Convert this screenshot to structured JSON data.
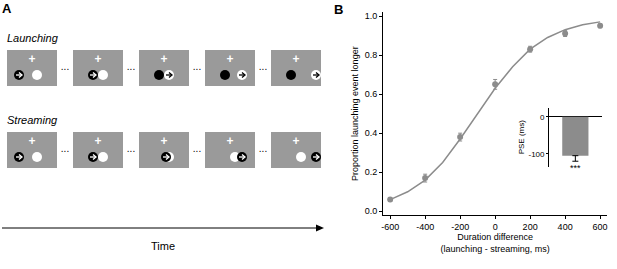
{
  "figure": {
    "panel_a": {
      "label": "A",
      "rows": [
        {
          "label": "Launching",
          "kind": "launching"
        },
        {
          "label": "Streaming",
          "kind": "streaming"
        }
      ],
      "ellipsis": "...",
      "fixation": "+",
      "time_label": "Time"
    },
    "panel_b_label": "B"
  },
  "chart_data": [
    {
      "type": "scatter",
      "x_label": [
        "Duration difference",
        "(launching - streaming, ms)"
      ],
      "y_label": "Proportion launching event longer",
      "x": [
        -600,
        -400,
        -200,
        0,
        200,
        400,
        600
      ],
      "values": [
        0.06,
        0.17,
        0.38,
        0.65,
        0.83,
        0.91,
        0.95
      ],
      "errors": [
        0.01,
        0.02,
        0.02,
        0.025,
        0.015,
        0.015,
        0.01
      ],
      "fit": {
        "x": [
          -600,
          -500,
          -400,
          -300,
          -200,
          -100,
          0,
          100,
          200,
          300,
          400,
          500,
          600
        ],
        "values": [
          0.06,
          0.1,
          0.16,
          0.25,
          0.37,
          0.5,
          0.63,
          0.74,
          0.83,
          0.89,
          0.93,
          0.955,
          0.97
        ]
      },
      "color": "#8c8c8c",
      "marker": "circle",
      "line_style": "solid",
      "xlim": [
        -640,
        640
      ],
      "xticks": [
        -600,
        -400,
        -200,
        0,
        200,
        400,
        600
      ],
      "ylim": [
        -0.02,
        1.02
      ],
      "yticks": [
        {
          "value": 0,
          "label": "0.0"
        },
        0.2,
        0.4,
        0.6,
        0.8,
        {
          "value": 1,
          "label": "1.0"
        }
      ],
      "grid": false
    },
    {
      "type": "bar",
      "y_label": "PSE (ms)",
      "categories": [
        null
      ],
      "values": [
        -105
      ],
      "errors": [
        15
      ],
      "annotations": [
        "***"
      ],
      "color": "#8c8c8c",
      "ylim": [
        -135,
        25
      ],
      "yticks": [
        -100,
        0
      ],
      "tick_labels": "y",
      "grid": false
    }
  ]
}
